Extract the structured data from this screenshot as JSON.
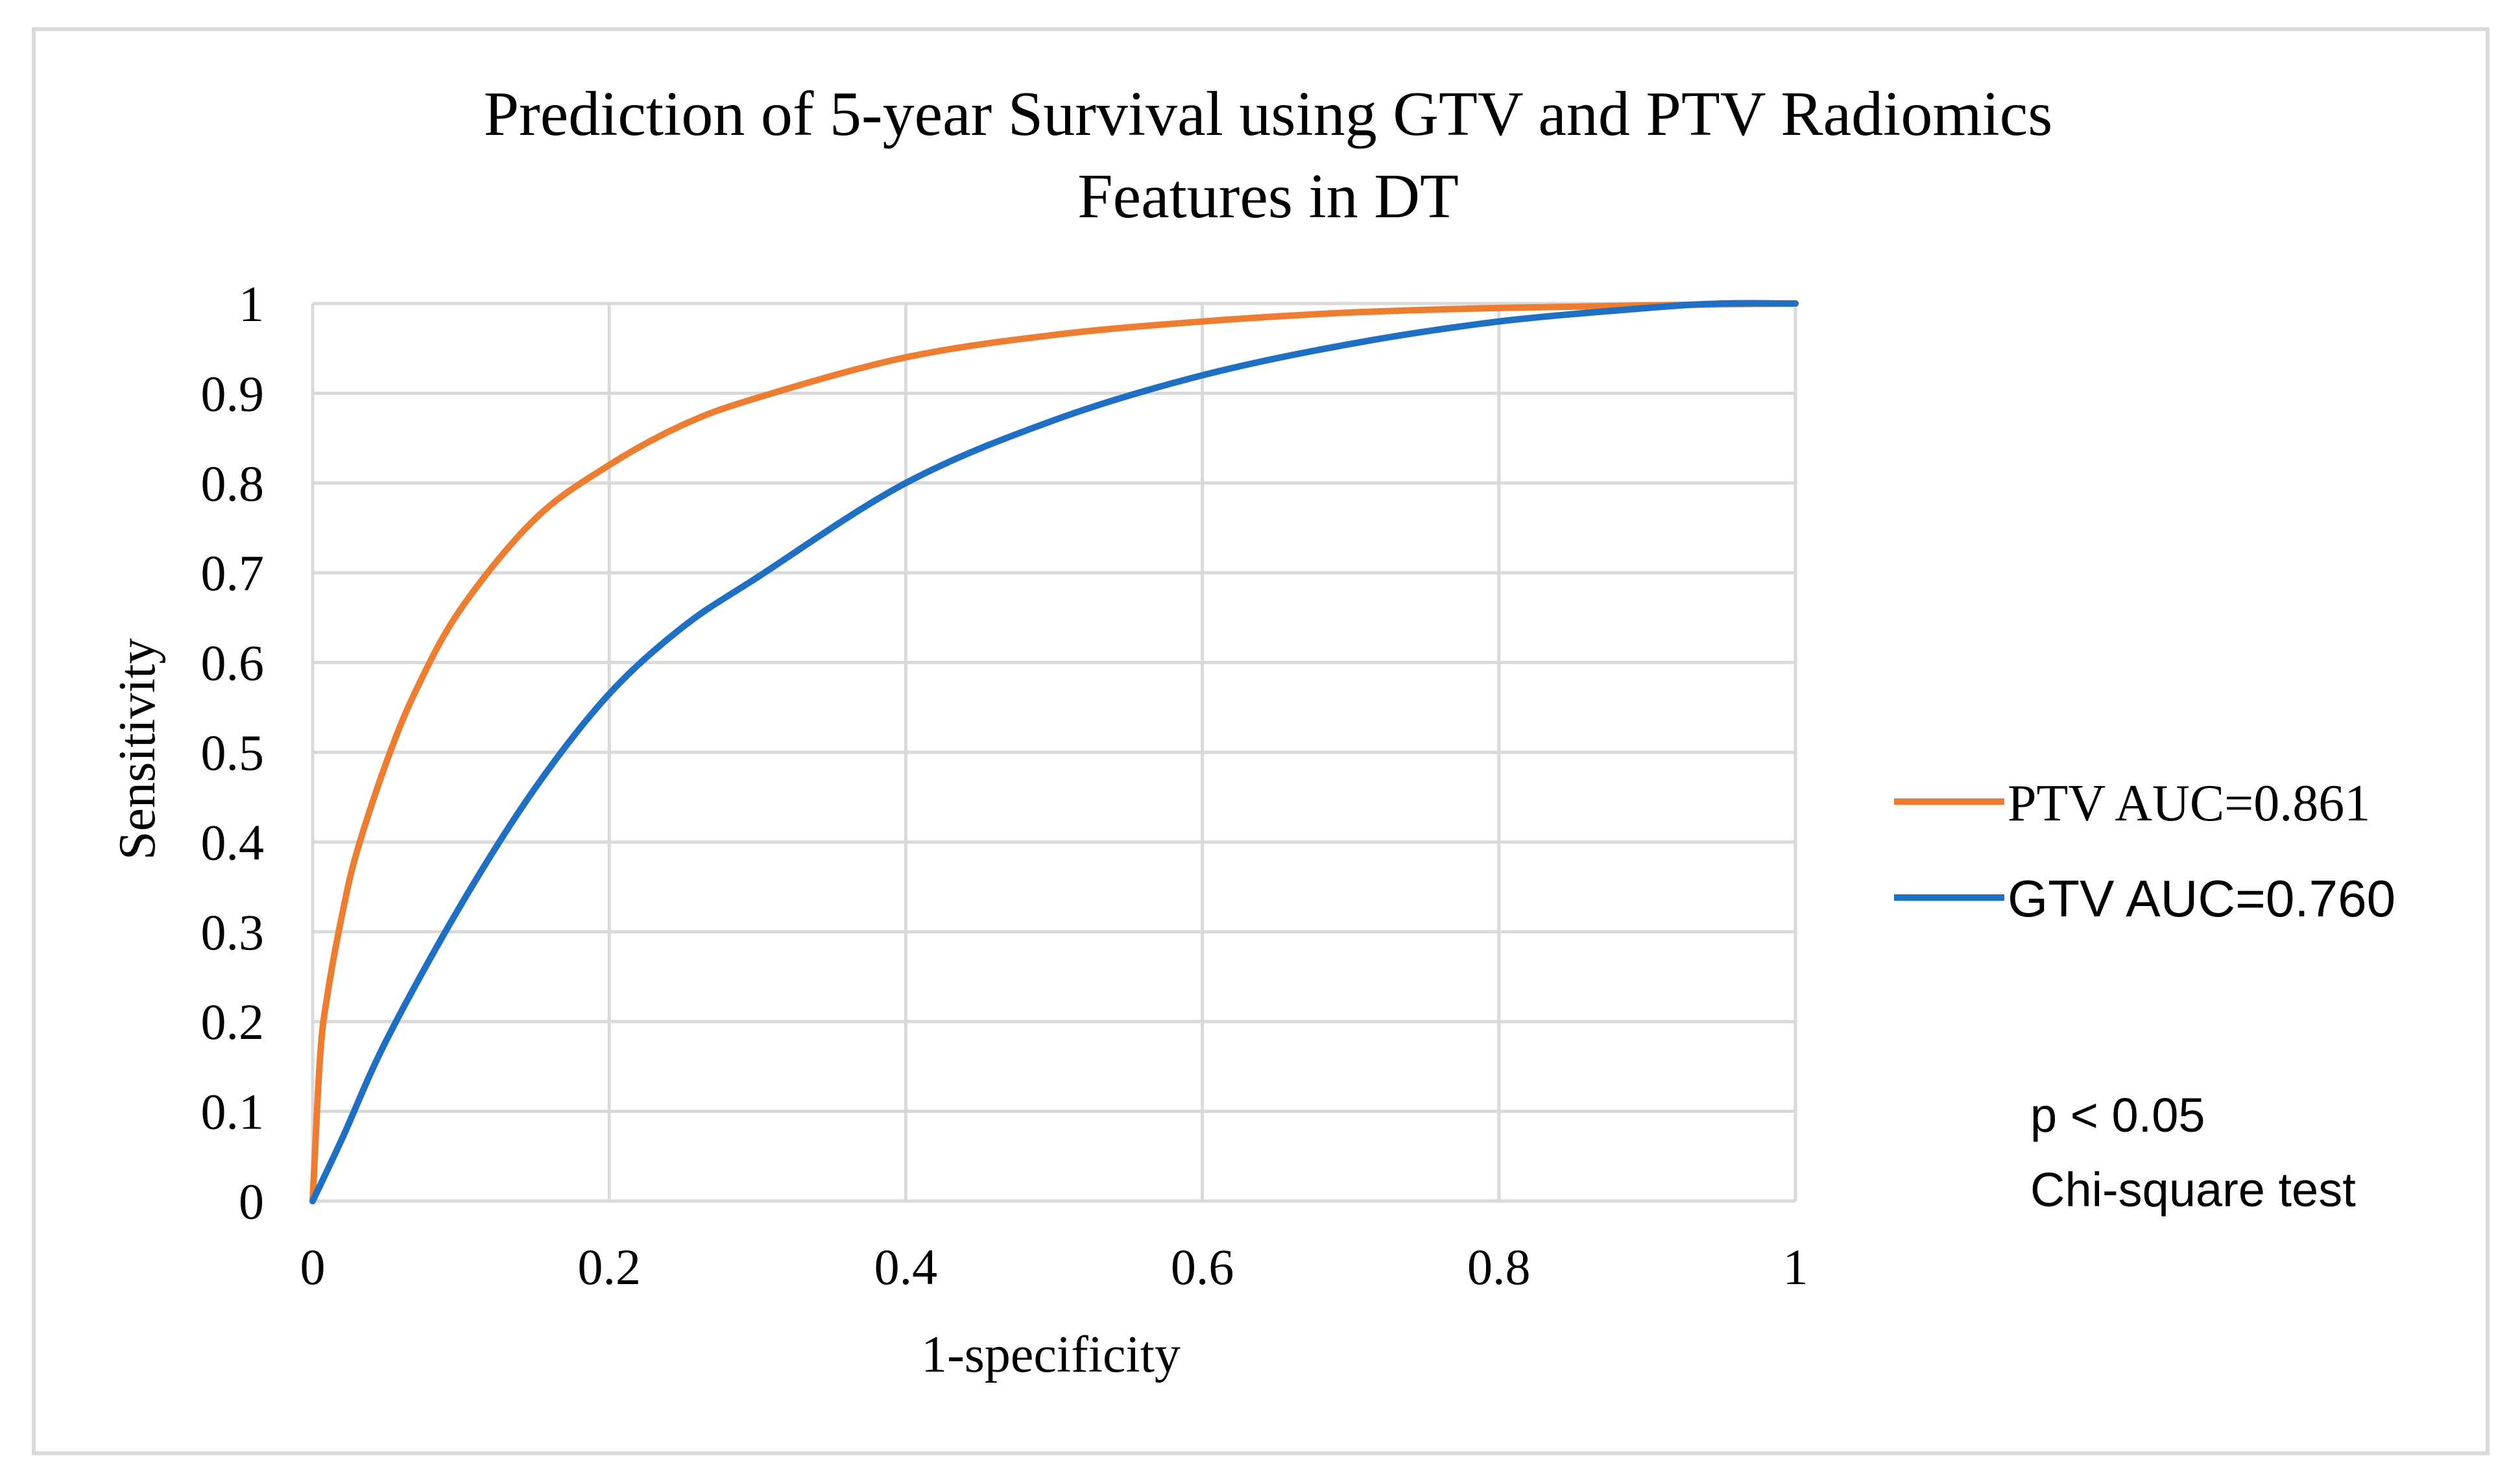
{
  "chart_data": {
    "type": "line",
    "title": [
      "Prediction of 5-year Survival using GTV and PTV Radiomics",
      "Features in DT"
    ],
    "xlabel": "1-specificity",
    "ylabel": "Sensitivity",
    "xlim": [
      0,
      1
    ],
    "ylim": [
      0,
      1
    ],
    "x_ticks": [
      "0",
      "0.2",
      "0.4",
      "0.6",
      "0.8",
      "1"
    ],
    "y_ticks": [
      "0",
      "0.1",
      "0.2",
      "0.3",
      "0.4",
      "0.5",
      "0.6",
      "0.7",
      "0.8",
      "0.9",
      "1"
    ],
    "grid": true,
    "legend_position": "right",
    "series": [
      {
        "name": "PTV AUC=0.861",
        "color": "#ED7D31",
        "x": [
          0,
          0.005,
          0.01,
          0.02,
          0.03,
          0.05,
          0.07,
          0.1,
          0.15,
          0.2,
          0.25,
          0.3,
          0.4,
          0.5,
          0.6,
          0.7,
          0.8,
          0.9,
          1.0
        ],
        "y": [
          0,
          0.16,
          0.23,
          0.32,
          0.39,
          0.49,
          0.57,
          0.66,
          0.76,
          0.82,
          0.865,
          0.895,
          0.94,
          0.965,
          0.98,
          0.99,
          0.995,
          0.998,
          1.0
        ]
      },
      {
        "name": "GTV AUC=0.760",
        "color": "#1F6FC5",
        "x": [
          0,
          0.02,
          0.05,
          0.1,
          0.15,
          0.2,
          0.25,
          0.3,
          0.4,
          0.5,
          0.6,
          0.7,
          0.8,
          0.9,
          0.95,
          1.0
        ],
        "y": [
          0,
          0.07,
          0.18,
          0.33,
          0.46,
          0.565,
          0.64,
          0.695,
          0.8,
          0.87,
          0.92,
          0.955,
          0.98,
          0.995,
          1.0,
          1.0
        ]
      }
    ],
    "annotations": [
      "p < 0.05",
      "Chi-square test"
    ]
  }
}
